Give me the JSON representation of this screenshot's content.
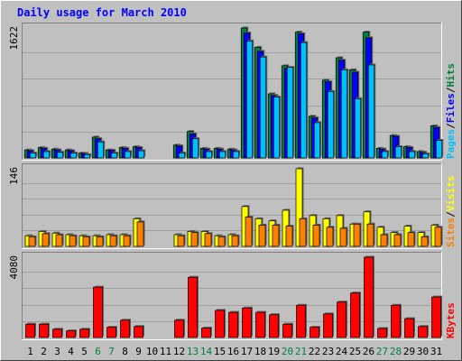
{
  "chart_data": {
    "type": "bar",
    "title": "Daily usage for March 2010",
    "categories": [
      "1",
      "2",
      "3",
      "4",
      "5",
      "6",
      "7",
      "8",
      "9",
      "10",
      "11",
      "12",
      "13",
      "14",
      "15",
      "16",
      "17",
      "18",
      "19",
      "20",
      "21",
      "22",
      "23",
      "24",
      "25",
      "26",
      "27",
      "28",
      "29",
      "30",
      "31"
    ],
    "weekend_days": [
      6,
      7,
      13,
      14,
      20,
      21,
      27,
      28
    ],
    "panels": [
      {
        "ymax_label": "1622",
        "ymax": 1622,
        "legend": [
          {
            "text": "Pages",
            "color": "#00c0ff"
          },
          {
            "text": "/",
            "color": "#000000"
          },
          {
            "text": "Files",
            "color": "#0000ff"
          },
          {
            "text": "/",
            "color": "#000000"
          },
          {
            "text": "Hits",
            "color": "#008040"
          }
        ],
        "series": [
          {
            "name": "Hits",
            "color": "#008040",
            "values": [
              100,
              130,
              110,
              100,
              60,
              260,
              100,
              130,
              140,
              0,
              0,
              160,
              330,
              120,
              120,
              110,
              1622,
              1380,
              800,
              1150,
              1570,
              520,
              970,
              1250,
              1100,
              1570,
              120,
              280,
              140,
              80,
              400
            ]
          },
          {
            "name": "Files",
            "color": "#0000ff",
            "values": [
              90,
              120,
              100,
              90,
              55,
              240,
              95,
              120,
              130,
              0,
              0,
              150,
              300,
              110,
              110,
              100,
              1560,
              1330,
              780,
              1120,
              1550,
              500,
              950,
              1220,
              1070,
              1500,
              110,
              270,
              130,
              70,
              380
            ]
          },
          {
            "name": "Pages",
            "color": "#00c0ff",
            "values": [
              60,
              80,
              70,
              60,
              40,
              200,
              60,
              80,
              90,
              0,
              0,
              60,
              240,
              80,
              80,
              80,
              1460,
              1260,
              760,
              1130,
              1440,
              440,
              830,
              1100,
              740,
              1160,
              80,
              140,
              80,
              50,
              220
            ]
          }
        ]
      },
      {
        "ymax_label": "146",
        "ymax": 146,
        "legend": [
          {
            "text": "Sites",
            "color": "#ff8000"
          },
          {
            "text": "/",
            "color": "#000000"
          },
          {
            "text": "Visits",
            "color": "#ffff00"
          }
        ],
        "series": [
          {
            "name": "Visits",
            "color": "#ffff00",
            "values": [
              20,
              28,
              25,
              22,
              20,
              20,
              22,
              22,
              52,
              0,
              0,
              22,
              28,
              28,
              20,
              22,
              75,
              52,
              48,
              68,
              146,
              58,
              52,
              58,
              42,
              65,
              36,
              26,
              38,
              26,
              40
            ]
          },
          {
            "name": "Sites",
            "color": "#ff8000",
            "values": [
              18,
              24,
              22,
              20,
              18,
              18,
              20,
              20,
              46,
              0,
              0,
              20,
              26,
              24,
              18,
              20,
              55,
              40,
              40,
              38,
              52,
              40,
              36,
              34,
              42,
              42,
              22,
              22,
              26,
              18,
              36
            ]
          }
        ]
      },
      {
        "ymax_label": "4080",
        "ymax": 4080,
        "legend": [
          {
            "text": "KBytes",
            "color": "#ff0000"
          }
        ],
        "series": [
          {
            "name": "KBytes",
            "color": "#ff0000",
            "values": [
              680,
              680,
              420,
              340,
              420,
              2560,
              520,
              880,
              560,
              0,
              0,
              880,
              3060,
              480,
              1380,
              1280,
              1500,
              1280,
              1160,
              680,
              1640,
              520,
              1200,
              1800,
              2260,
              4080,
              460,
              1640,
              960,
              560,
              2060
            ]
          }
        ]
      }
    ]
  },
  "colors": {
    "background": "#c0c0c0",
    "title": "#0000ff",
    "weekday": "#000000",
    "weekend": "#008040",
    "gridline": "#808080"
  }
}
